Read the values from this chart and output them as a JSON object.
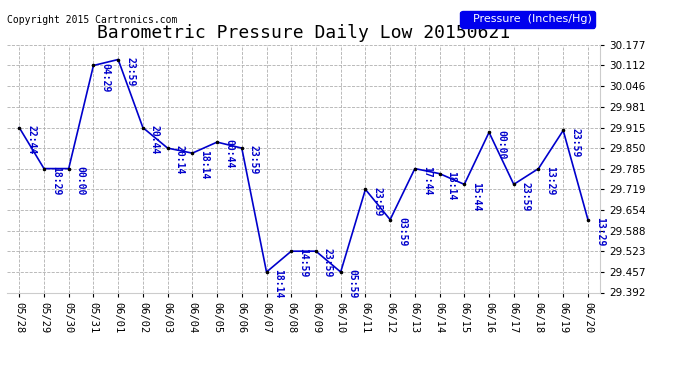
{
  "title": "Barometric Pressure Daily Low 20150621",
  "copyright": "Copyright 2015 Cartronics.com",
  "legend_label": "Pressure  (Inches/Hg)",
  "x_labels": [
    "05/28",
    "05/29",
    "05/30",
    "05/31",
    "06/01",
    "06/02",
    "06/03",
    "06/04",
    "06/05",
    "06/06",
    "06/07",
    "06/08",
    "06/09",
    "06/10",
    "06/11",
    "06/12",
    "06/13",
    "06/14",
    "06/15",
    "06/16",
    "06/17",
    "06/18",
    "06/19",
    "06/20"
  ],
  "y_values": [
    29.915,
    29.785,
    29.785,
    30.112,
    30.131,
    29.915,
    29.85,
    29.834,
    29.869,
    29.85,
    29.457,
    29.523,
    29.523,
    29.457,
    29.719,
    29.623,
    29.785,
    29.769,
    29.735,
    29.9,
    29.735,
    29.785,
    29.906,
    29.623
  ],
  "time_labels": [
    "22:44",
    "18:29",
    "00:00",
    "04:29",
    "23:59",
    "20:44",
    "20:14",
    "18:14",
    "00:44",
    "23:59",
    "18:14",
    "14:59",
    "23:59",
    "05:59",
    "23:59",
    "03:59",
    "17:44",
    "18:14",
    "15:44",
    "00:00",
    "23:59",
    "13:29",
    "23:59",
    "13:29"
  ],
  "ylim_min": 29.392,
  "ylim_max": 30.177,
  "yticks": [
    29.392,
    29.457,
    29.523,
    29.588,
    29.654,
    29.719,
    29.785,
    29.85,
    29.915,
    29.981,
    30.046,
    30.112,
    30.177
  ],
  "line_color": "#0000cc",
  "marker_color": "#000000",
  "bg_color": "#ffffff",
  "grid_color": "#b0b0b0",
  "legend_bg": "#0000ee",
  "legend_text": "#ffffff",
  "title_fontsize": 13,
  "annotation_fontsize": 7,
  "tick_fontsize": 7.5,
  "copyright_fontsize": 7
}
